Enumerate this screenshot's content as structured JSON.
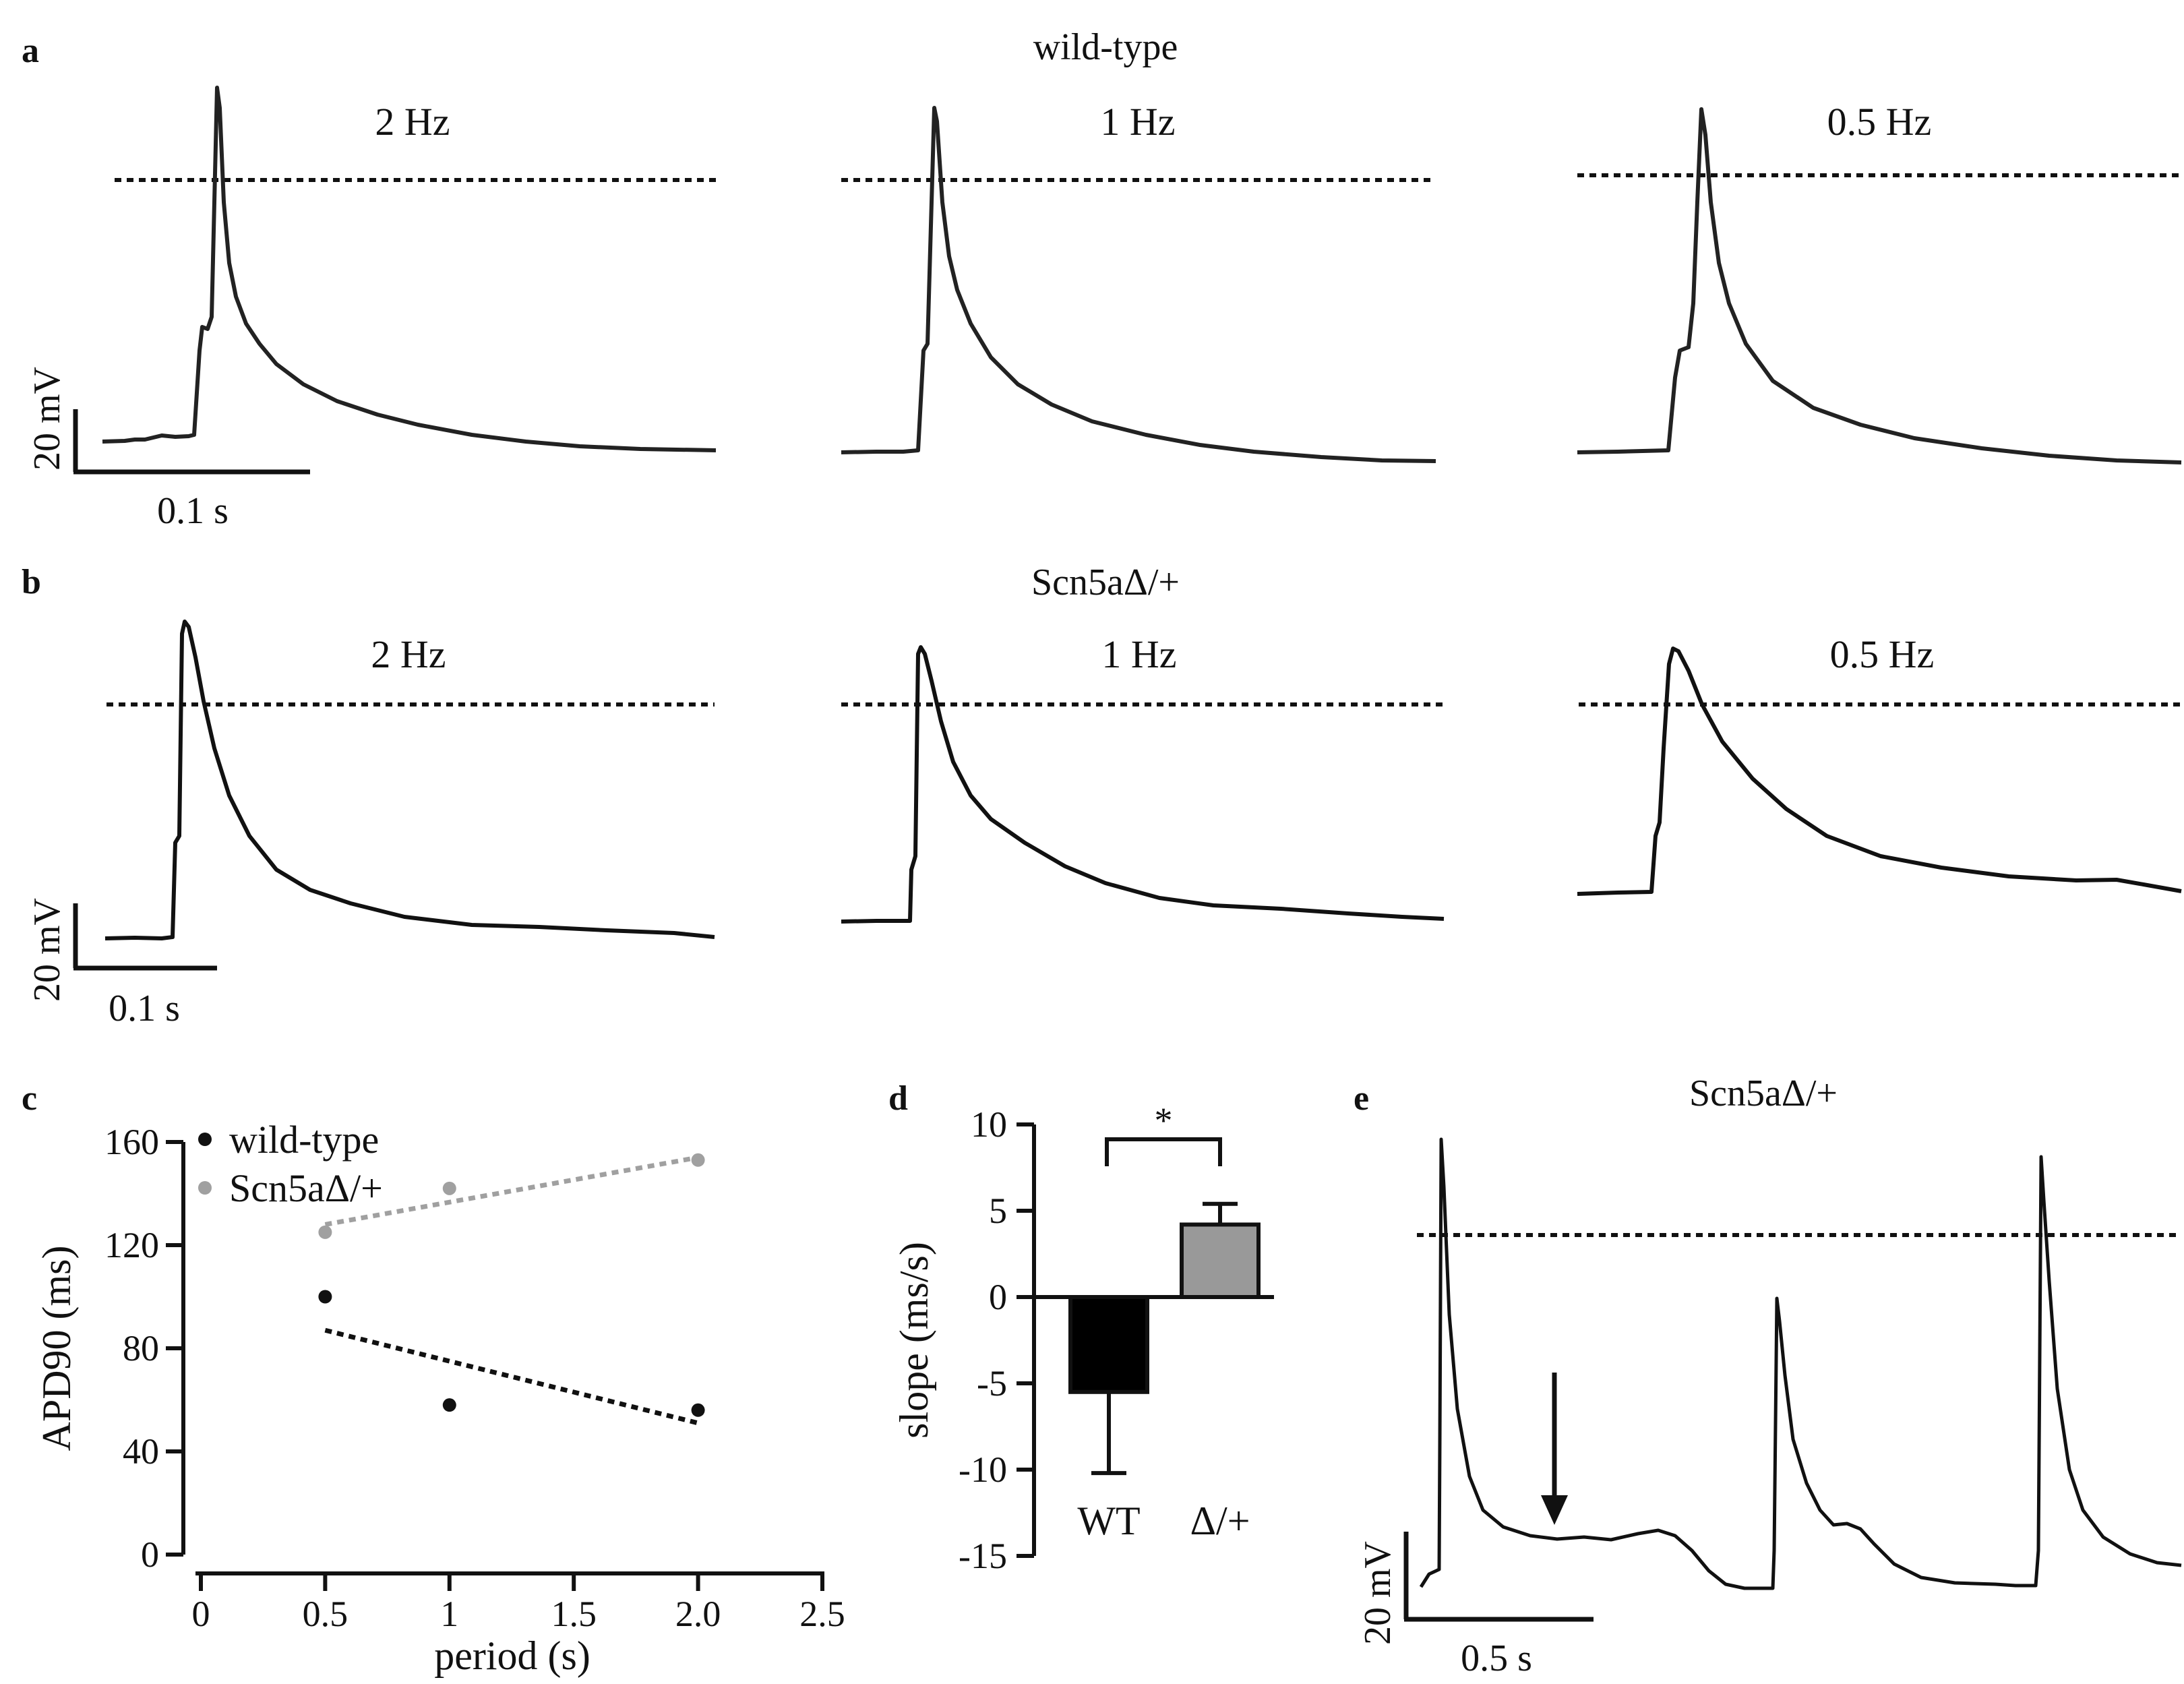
{
  "panel_a": {
    "letter": "a",
    "title": "wild-type",
    "traces": [
      {
        "label": "2 Hz"
      },
      {
        "label": "1 Hz"
      },
      {
        "label": "0.5 Hz"
      }
    ],
    "scalebar": {
      "voltage": "20 mV",
      "time": "0.1 s"
    }
  },
  "panel_b": {
    "letter": "b",
    "title": "Scn5aΔ/+",
    "traces": [
      {
        "label": "2 Hz"
      },
      {
        "label": "1 Hz"
      },
      {
        "label": "0.5 Hz"
      }
    ],
    "scalebar": {
      "voltage": "20 mV",
      "time": "0.1 s"
    }
  },
  "panel_c": {
    "letter": "c"
  },
  "panel_d": {
    "letter": "d",
    "significance": "*"
  },
  "panel_e": {
    "letter": "e",
    "title": "Scn5aΔ/+",
    "scalebar": {
      "voltage": "20 mV",
      "time": "0.5 s"
    }
  },
  "colors": {
    "wild_type": "#111111",
    "mutant": "#a0a0a0",
    "bar_wt": "#000000",
    "bar_mut": "#999999"
  },
  "chart_data": [
    {
      "id": "c",
      "type": "scatter",
      "xlabel": "period (s)",
      "ylabel": "APD90 (ms)",
      "xlim": [
        0,
        2.5
      ],
      "ylim": [
        0,
        160
      ],
      "xticks": [
        0,
        0.5,
        1,
        1.5,
        2.0,
        2.5
      ],
      "xtick_labels": [
        "0",
        "0.5",
        "1",
        "1.5",
        "2.0",
        "2.5"
      ],
      "yticks": [
        0,
        40,
        80,
        120,
        160
      ],
      "ytick_labels": [
        "0",
        "40",
        "80",
        "120",
        "160"
      ],
      "legend_position": "top-left",
      "series": [
        {
          "name": "wild-type",
          "color": "#111111",
          "x": [
            0.5,
            1.0,
            2.0
          ],
          "y": [
            100,
            58,
            56
          ],
          "fit": {
            "x": [
              0.5,
              2.0
            ],
            "y": [
              87,
              51
            ]
          }
        },
        {
          "name": "Scn5aΔ/+",
          "color": "#a0a0a0",
          "x": [
            0.5,
            1.0,
            2.0
          ],
          "y": [
            125,
            142,
            153
          ],
          "fit": {
            "x": [
              0.5,
              2.0
            ],
            "y": [
              128,
              154
            ]
          }
        }
      ]
    },
    {
      "id": "d",
      "type": "bar",
      "ylabel": "slope (ms/s)",
      "categories": [
        "WT",
        "Δ/+"
      ],
      "values": [
        -5.5,
        4.2
      ],
      "errors": [
        4.7,
        1.2
      ],
      "colors": [
        "#000000",
        "#999999"
      ],
      "ylim": [
        -15,
        10
      ],
      "yticks": [
        -15,
        -10,
        -5,
        0,
        5,
        10
      ],
      "ytick_labels": [
        "-15",
        "-10",
        "-5",
        "0",
        "5",
        "10"
      ]
    }
  ]
}
